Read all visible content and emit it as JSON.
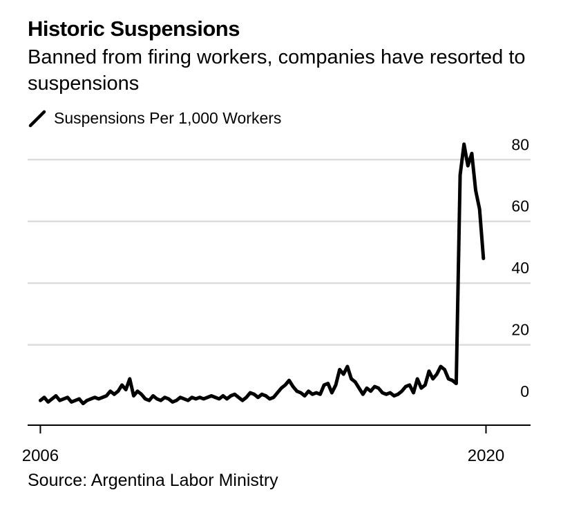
{
  "chart_data": {
    "type": "line",
    "title": "Historic Suspensions",
    "subtitle": "Banned from firing workers, companies have resorted to suspensions",
    "series": [
      {
        "name": "Suspensions Per 1,000 Workers",
        "color": "#000000",
        "x_start": 2006.0,
        "x_end": 2019.92,
        "values": [
          2.0,
          3.0,
          1.5,
          2.5,
          3.5,
          2.0,
          2.5,
          3.0,
          1.5,
          2.0,
          2.5,
          1.0,
          2.0,
          2.5,
          3.0,
          2.5,
          3.0,
          3.5,
          5.0,
          4.0,
          5.0,
          7.0,
          5.5,
          9.0,
          3.5,
          5.0,
          4.0,
          2.5,
          2.0,
          3.5,
          2.5,
          2.0,
          3.0,
          2.5,
          1.5,
          2.0,
          3.0,
          2.5,
          2.0,
          3.0,
          2.5,
          3.0,
          2.5,
          3.0,
          3.5,
          3.0,
          2.5,
          3.5,
          2.5,
          3.5,
          4.0,
          3.0,
          2.0,
          3.0,
          4.5,
          4.0,
          3.0,
          4.0,
          3.5,
          2.5,
          3.0,
          4.5,
          6.0,
          7.0,
          8.5,
          6.5,
          5.0,
          4.5,
          3.5,
          5.0,
          4.0,
          4.5,
          4.0,
          7.0,
          7.5,
          4.5,
          7.0,
          12.0,
          10.5,
          13.0,
          9.0,
          8.0,
          6.0,
          4.0,
          6.0,
          5.0,
          6.5,
          6.0,
          4.5,
          4.0,
          4.5,
          3.5,
          4.0,
          5.0,
          6.5,
          7.0,
          4.5,
          9.0,
          6.0,
          7.0,
          11.5,
          9.0,
          10.5,
          13.0,
          12.0,
          9.0,
          8.5,
          7.5,
          75.0,
          85.0,
          78.0,
          82.0,
          70.0,
          64.0,
          48.0
        ]
      }
    ],
    "x_ticks": [
      "2006",
      "2020"
    ],
    "y_ticks": [
      "0",
      "20",
      "40",
      "60",
      "80"
    ],
    "xlim": [
      2005.6,
      2021.4
    ],
    "ylim": [
      -6,
      89
    ],
    "ylabel": "",
    "xlabel": "",
    "grid": true,
    "grid_color": "#dcdcdc",
    "legend_position": "top-left"
  },
  "source": "Source: Argentina Labor Ministry"
}
